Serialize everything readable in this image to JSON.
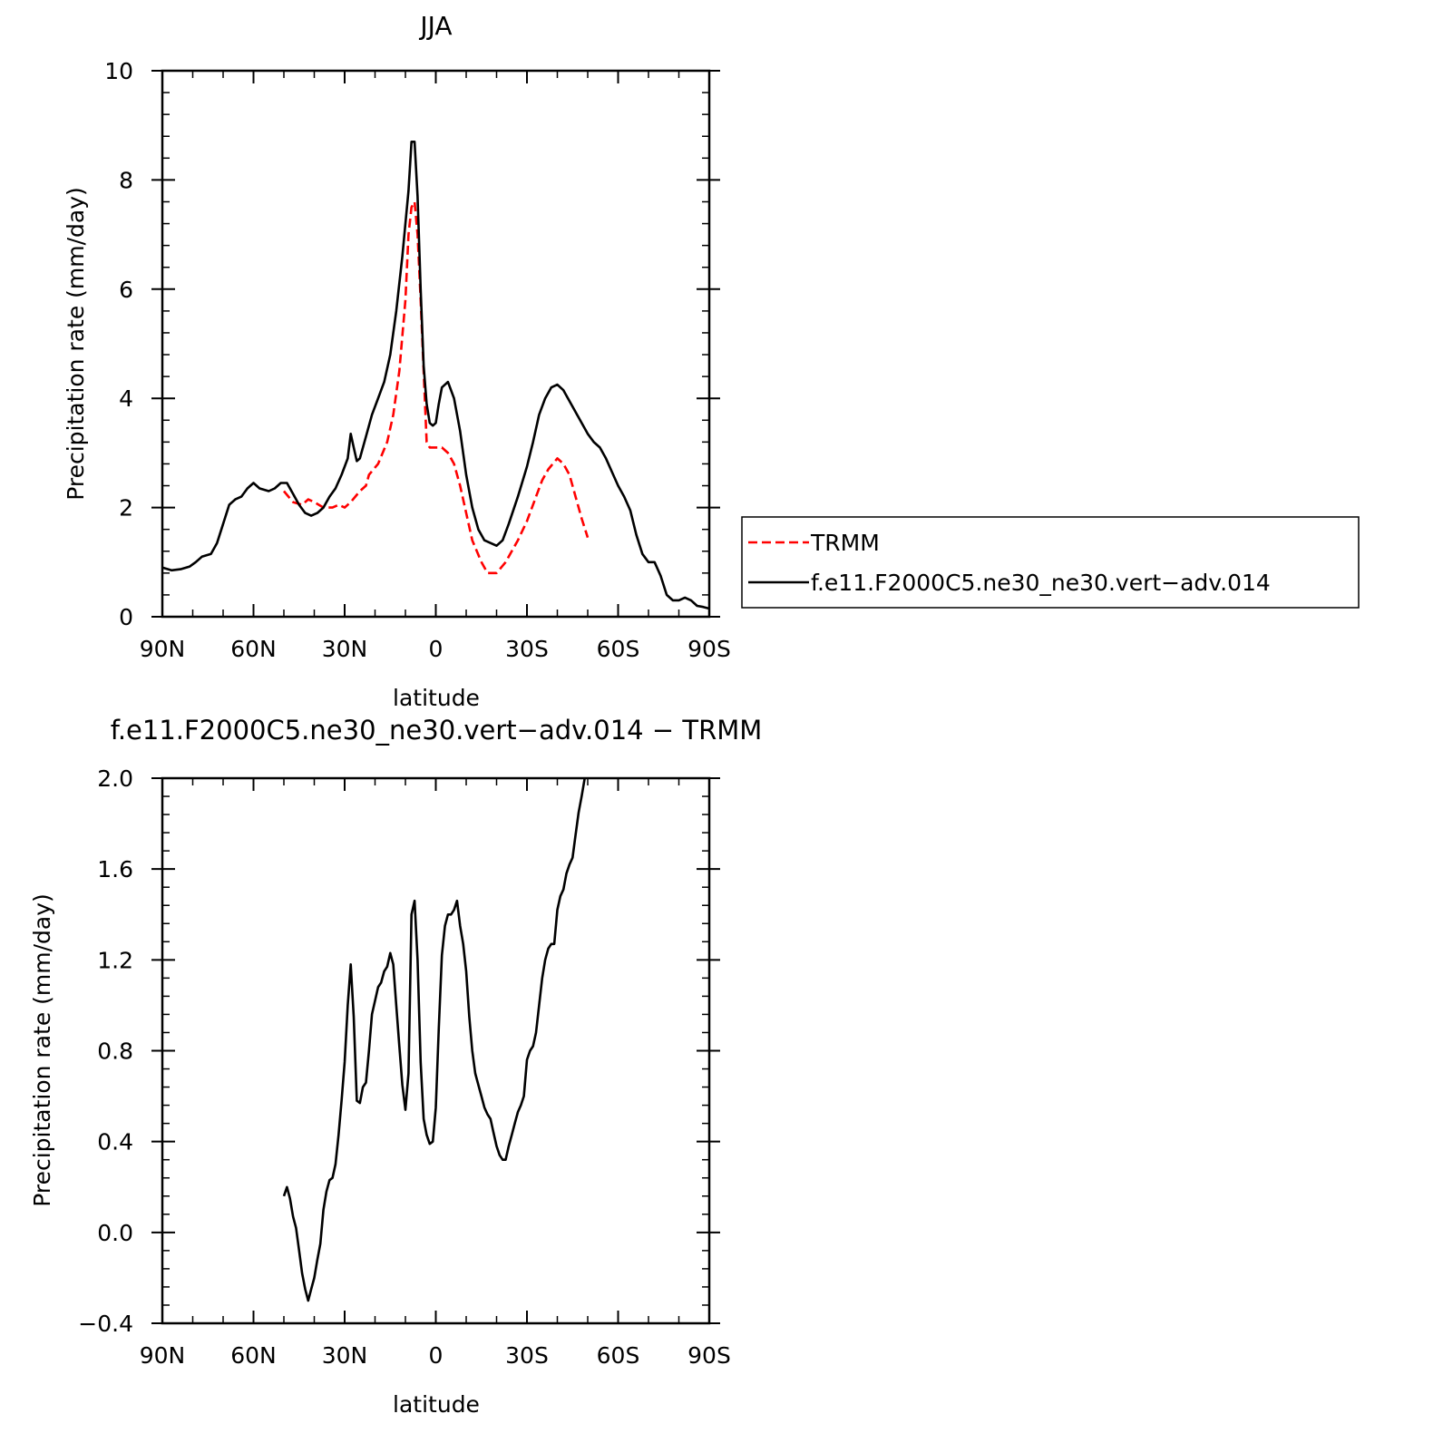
{
  "chart_data": [
    {
      "type": "line",
      "title": "JJA",
      "xlabel": "latitude",
      "ylabel": "Precipitation rate (mm/day)",
      "xlim": [
        90,
        -90
      ],
      "ylim": [
        0,
        10
      ],
      "x_ticks": [
        {
          "v": 90,
          "label": "90N"
        },
        {
          "v": 60,
          "label": "60N"
        },
        {
          "v": 30,
          "label": "30N"
        },
        {
          "v": 0,
          "label": "0"
        },
        {
          "v": -30,
          "label": "30S"
        },
        {
          "v": -60,
          "label": "60S"
        },
        {
          "v": -90,
          "label": "90S"
        }
      ],
      "y_ticks": [
        {
          "v": 0,
          "label": "0"
        },
        {
          "v": 2,
          "label": "2"
        },
        {
          "v": 4,
          "label": "4"
        },
        {
          "v": 6,
          "label": "6"
        },
        {
          "v": 8,
          "label": "8"
        },
        {
          "v": 10,
          "label": "10"
        }
      ],
      "grid": false,
      "legend_position": "right",
      "series": [
        {
          "name": "TRMM",
          "color": "#ff0000",
          "dash": true,
          "points": [
            [
              50,
              2.3
            ],
            [
              47,
              2.1
            ],
            [
              44,
              2.05
            ],
            [
              42,
              2.15
            ],
            [
              40,
              2.1
            ],
            [
              37,
              2.0
            ],
            [
              34,
              2.0
            ],
            [
              32,
              2.05
            ],
            [
              30,
              2.0
            ],
            [
              28,
              2.1
            ],
            [
              25,
              2.3
            ],
            [
              23,
              2.4
            ],
            [
              22,
              2.6
            ],
            [
              19,
              2.8
            ],
            [
              16,
              3.2
            ],
            [
              14,
              3.7
            ],
            [
              12,
              4.5
            ],
            [
              10,
              5.8
            ],
            [
              9,
              7.0
            ],
            [
              8,
              7.5
            ],
            [
              7,
              7.6
            ],
            [
              6,
              7.0
            ],
            [
              5,
              5.8
            ],
            [
              4,
              4.5
            ],
            [
              3,
              3.2
            ],
            [
              2,
              3.1
            ],
            [
              0,
              3.1
            ],
            [
              -2,
              3.1
            ],
            [
              -4,
              3.0
            ],
            [
              -6,
              2.8
            ],
            [
              -8,
              2.4
            ],
            [
              -10,
              1.9
            ],
            [
              -12,
              1.4
            ],
            [
              -15,
              1.0
            ],
            [
              -17,
              0.8
            ],
            [
              -20,
              0.8
            ],
            [
              -23,
              1.0
            ],
            [
              -27,
              1.4
            ],
            [
              -30,
              1.75
            ],
            [
              -33,
              2.2
            ],
            [
              -35,
              2.5
            ],
            [
              -37,
              2.7
            ],
            [
              -40,
              2.9
            ],
            [
              -42,
              2.8
            ],
            [
              -44,
              2.6
            ],
            [
              -46,
              2.2
            ],
            [
              -48,
              1.8
            ],
            [
              -50,
              1.45
            ]
          ]
        },
        {
          "name": "f.e11.F2000C5.ne30_ne30.vert−adv.014",
          "color": "#000000",
          "dash": false,
          "points": [
            [
              90,
              0.9
            ],
            [
              87,
              0.85
            ],
            [
              84,
              0.87
            ],
            [
              81,
              0.92
            ],
            [
              79,
              1.0
            ],
            [
              77,
              1.1
            ],
            [
              74,
              1.15
            ],
            [
              72,
              1.35
            ],
            [
              70,
              1.7
            ],
            [
              68,
              2.05
            ],
            [
              66,
              2.15
            ],
            [
              64,
              2.2
            ],
            [
              62,
              2.35
            ],
            [
              60,
              2.45
            ],
            [
              58,
              2.35
            ],
            [
              55,
              2.3
            ],
            [
              53,
              2.35
            ],
            [
              51,
              2.45
            ],
            [
              49,
              2.45
            ],
            [
              47,
              2.25
            ],
            [
              45,
              2.05
            ],
            [
              43,
              1.9
            ],
            [
              41,
              1.85
            ],
            [
              39,
              1.9
            ],
            [
              37,
              2.0
            ],
            [
              35,
              2.2
            ],
            [
              33,
              2.35
            ],
            [
              31,
              2.6
            ],
            [
              29,
              2.9
            ],
            [
              28,
              3.35
            ],
            [
              27,
              3.1
            ],
            [
              26,
              2.85
            ],
            [
              25,
              2.9
            ],
            [
              23,
              3.3
            ],
            [
              21,
              3.7
            ],
            [
              19,
              4.0
            ],
            [
              17,
              4.3
            ],
            [
              15,
              4.8
            ],
            [
              13,
              5.6
            ],
            [
              11,
              6.6
            ],
            [
              9,
              7.8
            ],
            [
              8,
              8.7
            ],
            [
              7,
              8.7
            ],
            [
              6,
              7.7
            ],
            [
              5,
              6.0
            ],
            [
              4,
              4.6
            ],
            [
              3,
              3.9
            ],
            [
              2,
              3.55
            ],
            [
              1,
              3.5
            ],
            [
              0,
              3.55
            ],
            [
              -1,
              3.9
            ],
            [
              -2,
              4.2
            ],
            [
              -4,
              4.3
            ],
            [
              -6,
              4.0
            ],
            [
              -8,
              3.4
            ],
            [
              -10,
              2.6
            ],
            [
              -12,
              2.0
            ],
            [
              -14,
              1.6
            ],
            [
              -16,
              1.4
            ],
            [
              -18,
              1.35
            ],
            [
              -20,
              1.3
            ],
            [
              -22,
              1.4
            ],
            [
              -24,
              1.7
            ],
            [
              -27,
              2.2
            ],
            [
              -30,
              2.75
            ],
            [
              -32,
              3.2
            ],
            [
              -34,
              3.7
            ],
            [
              -36,
              4.0
            ],
            [
              -38,
              4.2
            ],
            [
              -40,
              4.25
            ],
            [
              -42,
              4.15
            ],
            [
              -44,
              3.95
            ],
            [
              -46,
              3.75
            ],
            [
              -48,
              3.55
            ],
            [
              -50,
              3.35
            ],
            [
              -52,
              3.2
            ],
            [
              -54,
              3.1
            ],
            [
              -56,
              2.9
            ],
            [
              -58,
              2.65
            ],
            [
              -60,
              2.4
            ],
            [
              -62,
              2.2
            ],
            [
              -64,
              1.95
            ],
            [
              -66,
              1.5
            ],
            [
              -68,
              1.15
            ],
            [
              -70,
              1.0
            ],
            [
              -72,
              1.0
            ],
            [
              -74,
              0.75
            ],
            [
              -76,
              0.4
            ],
            [
              -78,
              0.3
            ],
            [
              -80,
              0.3
            ],
            [
              -82,
              0.35
            ],
            [
              -84,
              0.3
            ],
            [
              -86,
              0.2
            ],
            [
              -88,
              0.18
            ],
            [
              -90,
              0.15
            ]
          ]
        }
      ]
    },
    {
      "type": "line",
      "title": "f.e11.F2000C5.ne30_ne30.vert−adv.014 − TRMM",
      "xlabel": "latitude",
      "ylabel": "Precipitation rate (mm/day)",
      "xlim": [
        90,
        -90
      ],
      "ylim": [
        -0.4,
        2.0
      ],
      "x_ticks": [
        {
          "v": 90,
          "label": "90N"
        },
        {
          "v": 60,
          "label": "60N"
        },
        {
          "v": 30,
          "label": "30N"
        },
        {
          "v": 0,
          "label": "0"
        },
        {
          "v": -30,
          "label": "30S"
        },
        {
          "v": -60,
          "label": "60S"
        },
        {
          "v": -90,
          "label": "90S"
        }
      ],
      "y_ticks": [
        {
          "v": -0.4,
          "label": "−0.4"
        },
        {
          "v": 0.0,
          "label": "0.0"
        },
        {
          "v": 0.4,
          "label": "0.4"
        },
        {
          "v": 0.8,
          "label": "0.8"
        },
        {
          "v": 1.2,
          "label": "1.2"
        },
        {
          "v": 1.6,
          "label": "1.6"
        },
        {
          "v": 2.0,
          "label": "2.0"
        }
      ],
      "grid": false,
      "series": [
        {
          "color": "#000000",
          "dash": false,
          "points": [
            [
              50,
              0.16
            ],
            [
              49,
              0.2
            ],
            [
              48,
              0.15
            ],
            [
              47,
              0.07
            ],
            [
              46,
              0.02
            ],
            [
              45,
              -0.08
            ],
            [
              44,
              -0.18
            ],
            [
              43,
              -0.25
            ],
            [
              42,
              -0.3
            ],
            [
              41,
              -0.25
            ],
            [
              40,
              -0.2
            ],
            [
              39,
              -0.12
            ],
            [
              38,
              -0.05
            ],
            [
              37,
              0.1
            ],
            [
              36,
              0.18
            ],
            [
              35,
              0.23
            ],
            [
              34,
              0.24
            ],
            [
              33,
              0.3
            ],
            [
              32,
              0.43
            ],
            [
              31,
              0.58
            ],
            [
              30,
              0.75
            ],
            [
              29,
              1.0
            ],
            [
              28,
              1.18
            ],
            [
              27,
              0.95
            ],
            [
              26,
              0.58
            ],
            [
              25,
              0.57
            ],
            [
              24,
              0.64
            ],
            [
              23,
              0.66
            ],
            [
              22,
              0.8
            ],
            [
              21,
              0.96
            ],
            [
              20,
              1.02
            ],
            [
              19,
              1.08
            ],
            [
              18,
              1.1
            ],
            [
              17,
              1.15
            ],
            [
              16,
              1.17
            ],
            [
              15,
              1.23
            ],
            [
              14,
              1.18
            ],
            [
              13,
              1.0
            ],
            [
              12,
              0.82
            ],
            [
              11,
              0.65
            ],
            [
              10,
              0.54
            ],
            [
              9,
              0.7
            ],
            [
              8,
              1.4
            ],
            [
              7,
              1.46
            ],
            [
              6,
              1.2
            ],
            [
              5,
              0.75
            ],
            [
              4,
              0.5
            ],
            [
              3,
              0.43
            ],
            [
              2,
              0.39
            ],
            [
              1,
              0.4
            ],
            [
              0,
              0.55
            ],
            [
              -1,
              0.9
            ],
            [
              -2,
              1.22
            ],
            [
              -3,
              1.35
            ],
            [
              -4,
              1.4
            ],
            [
              -5,
              1.4
            ],
            [
              -6,
              1.42
            ],
            [
              -7,
              1.46
            ],
            [
              -8,
              1.35
            ],
            [
              -9,
              1.27
            ],
            [
              -10,
              1.15
            ],
            [
              -11,
              0.95
            ],
            [
              -12,
              0.8
            ],
            [
              -13,
              0.7
            ],
            [
              -14,
              0.65
            ],
            [
              -15,
              0.6
            ],
            [
              -16,
              0.55
            ],
            [
              -17,
              0.52
            ],
            [
              -18,
              0.5
            ],
            [
              -19,
              0.44
            ],
            [
              -20,
              0.38
            ],
            [
              -21,
              0.34
            ],
            [
              -22,
              0.32
            ],
            [
              -23,
              0.32
            ],
            [
              -24,
              0.38
            ],
            [
              -25,
              0.43
            ],
            [
              -26,
              0.48
            ],
            [
              -27,
              0.53
            ],
            [
              -28,
              0.56
            ],
            [
              -29,
              0.6
            ],
            [
              -30,
              0.76
            ],
            [
              -31,
              0.8
            ],
            [
              -32,
              0.82
            ],
            [
              -33,
              0.88
            ],
            [
              -34,
              1.0
            ],
            [
              -35,
              1.12
            ],
            [
              -36,
              1.2
            ],
            [
              -37,
              1.25
            ],
            [
              -38,
              1.27
            ],
            [
              -39,
              1.27
            ],
            [
              -40,
              1.42
            ],
            [
              -41,
              1.48
            ],
            [
              -42,
              1.51
            ],
            [
              -43,
              1.58
            ],
            [
              -44,
              1.62
            ],
            [
              -45,
              1.65
            ],
            [
              -46,
              1.75
            ],
            [
              -47,
              1.85
            ],
            [
              -48,
              1.92
            ],
            [
              -49,
              2.0
            ]
          ]
        }
      ]
    }
  ]
}
